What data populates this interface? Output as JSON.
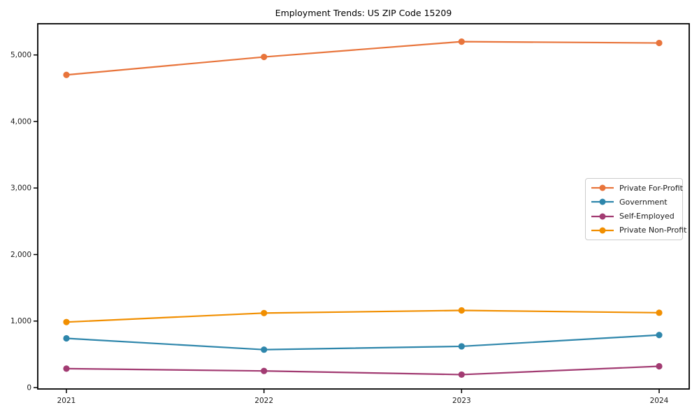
{
  "chart_data": {
    "type": "line",
    "title": "Employment Trends: US ZIP Code 15209",
    "x": [
      2021,
      2022,
      2023,
      2024
    ],
    "xtick_labels": [
      "2021",
      "2022",
      "2023",
      "2024"
    ],
    "yticks": [
      0,
      1000,
      2000,
      3000,
      4000,
      5000
    ],
    "ytick_labels": [
      "0",
      "1,000",
      "2,000",
      "3,000",
      "4,000",
      "5,000"
    ],
    "ylim": [
      0,
      5470
    ],
    "xlabel": "",
    "ylabel": "",
    "grid": false,
    "legend_position": "center-right",
    "series": [
      {
        "name": "Private For-Profit",
        "color": "#e8743b",
        "values": [
          4700,
          4970,
          5200,
          5180
        ]
      },
      {
        "name": "Government",
        "color": "#2e86ab",
        "values": [
          740,
          570,
          620,
          790
        ]
      },
      {
        "name": "Self-Employed",
        "color": "#a23b72",
        "values": [
          285,
          250,
          195,
          320
        ]
      },
      {
        "name": "Private Non-Profit",
        "color": "#f18f01",
        "values": [
          985,
          1120,
          1160,
          1125
        ]
      }
    ],
    "axis_color": "#000000",
    "tick_label_color": "#1a1a1a"
  }
}
